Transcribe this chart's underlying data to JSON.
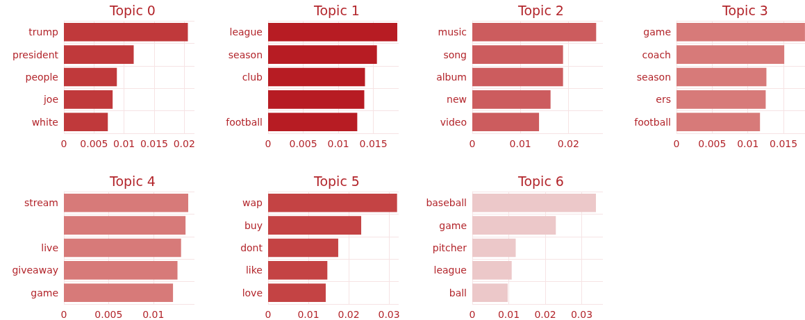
{
  "chart_data": [
    {
      "type": "bar",
      "orientation": "horizontal",
      "title": "Topic 0",
      "categories": [
        "trump",
        "president",
        "people",
        "joe",
        "white"
      ],
      "values": [
        0.0206,
        0.0116,
        0.0088,
        0.0081,
        0.0073
      ],
      "color": "#c0393b",
      "xlim": [
        0,
        0.0217
      ],
      "xticks": [
        0,
        0.005,
        0.01,
        0.015,
        0.02
      ],
      "grid": true
    },
    {
      "type": "bar",
      "orientation": "horizontal",
      "title": "Topic 1",
      "categories": [
        "league",
        "season",
        "club",
        null,
        "football"
      ],
      "values": [
        0.0184,
        0.0155,
        0.0138,
        0.0137,
        0.0127
      ],
      "color": "#b71c23",
      "xlim": [
        0,
        0.0186
      ],
      "xticks": [
        0,
        0.005,
        0.01,
        0.015
      ],
      "grid": true
    },
    {
      "type": "bar",
      "orientation": "horizontal",
      "title": "Topic 2",
      "categories": [
        "music",
        "song",
        "album",
        "new",
        "video"
      ],
      "values": [
        0.0258,
        0.0189,
        0.0189,
        0.0163,
        0.0139
      ],
      "color": "#cc5c5e",
      "xlim": [
        0,
        0.0272
      ],
      "xticks": [
        0,
        0.01,
        0.02
      ],
      "grid": true
    },
    {
      "type": "bar",
      "orientation": "horizontal",
      "title": "Topic 3",
      "categories": [
        "game",
        "coach",
        "season",
        "ers",
        "football"
      ],
      "values": [
        0.018,
        0.0151,
        0.0126,
        0.0125,
        0.0117
      ],
      "color": "#d77a79",
      "xlim": [
        0,
        0.0183
      ],
      "xticks": [
        0,
        0.005,
        0.01,
        0.015
      ],
      "grid": true
    },
    {
      "type": "bar",
      "orientation": "horizontal",
      "title": "Topic 4",
      "categories": [
        "stream",
        null,
        "live",
        "giveaway",
        "game"
      ],
      "values": [
        0.0139,
        0.0136,
        0.0131,
        0.0127,
        0.0122
      ],
      "color": "#d77a79",
      "xlim": [
        0,
        0.0146
      ],
      "xticks": [
        0,
        0.005,
        0.01
      ],
      "grid": true
    },
    {
      "type": "bar",
      "orientation": "horizontal",
      "title": "Topic 5",
      "categories": [
        "wap",
        "buy",
        "dont",
        "like",
        "love"
      ],
      "values": [
        0.032,
        0.0231,
        0.0174,
        0.0147,
        0.0143
      ],
      "color": "#c44344",
      "xlim": [
        0,
        0.0324
      ],
      "xticks": [
        0,
        0.01,
        0.02,
        0.03
      ],
      "grid": true
    },
    {
      "type": "bar",
      "orientation": "horizontal",
      "title": "Topic 6",
      "categories": [
        "baseball",
        "game",
        "pitcher",
        "league",
        "ball"
      ],
      "values": [
        0.0339,
        0.0229,
        0.0119,
        0.0108,
        0.0097
      ],
      "color": "#ecc8c9",
      "xlim": [
        0,
        0.0358
      ],
      "xticks": [
        0,
        0.01,
        0.02,
        0.03
      ],
      "grid": true
    }
  ]
}
